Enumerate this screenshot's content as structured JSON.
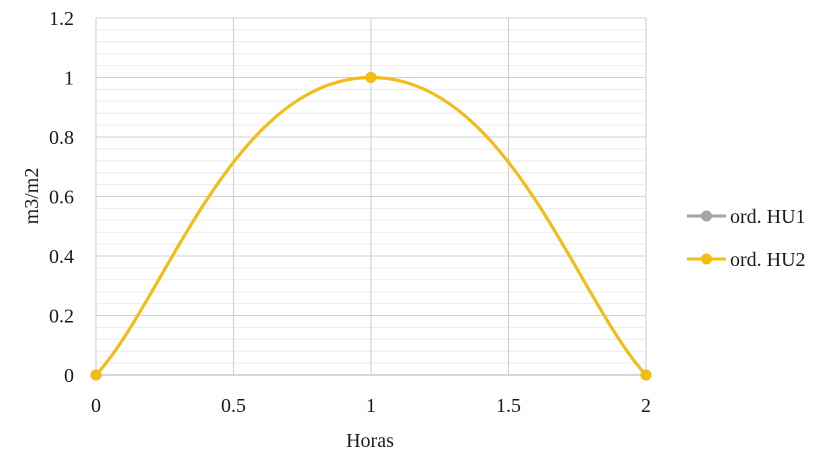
{
  "chart_data": {
    "type": "line",
    "xlabel": "Horas",
    "ylabel": "m3/m2",
    "xlim": [
      0,
      2
    ],
    "ylim": [
      0,
      1.2
    ],
    "x_ticks": [
      "0",
      "0.5",
      "1",
      "1.5",
      "2"
    ],
    "y_ticks": [
      "0",
      "0.2",
      "0.4",
      "0.6",
      "0.8",
      "1",
      "1.2"
    ],
    "grid": true,
    "minor_grid": true,
    "legend_position": "right",
    "smooth": true,
    "series": [
      {
        "name": "ord. HU1",
        "color": "#a5a5a5",
        "x": [
          0,
          1,
          2
        ],
        "y": [
          0,
          1,
          0
        ]
      },
      {
        "name": "ord. HU2",
        "color": "#f5bd12",
        "x": [
          0,
          1,
          2
        ],
        "y": [
          0,
          1,
          0
        ]
      }
    ]
  }
}
